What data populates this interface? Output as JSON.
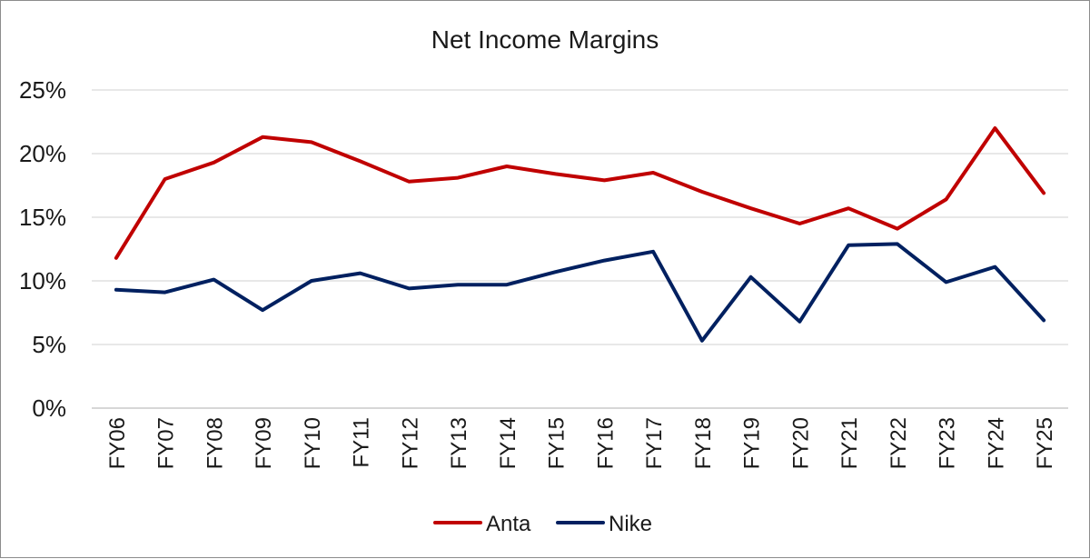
{
  "chart_data": {
    "type": "line",
    "title": "Net Income Margins",
    "xlabel": "",
    "ylabel": "",
    "categories": [
      "FY06",
      "FY07",
      "FY08",
      "FY09",
      "FY10",
      "FY11",
      "FY12",
      "FY13",
      "FY14",
      "FY15",
      "FY16",
      "FY17",
      "FY18",
      "FY19",
      "FY20",
      "FY21",
      "FY22",
      "FY23",
      "FY24",
      "FY25"
    ],
    "series": [
      {
        "name": "Anta",
        "color": "#c00000",
        "values": [
          11.8,
          18.0,
          19.3,
          21.3,
          20.9,
          19.4,
          17.8,
          18.1,
          19.0,
          18.4,
          17.9,
          18.5,
          17.0,
          15.7,
          14.5,
          15.7,
          14.1,
          16.4,
          22.0,
          16.9
        ]
      },
      {
        "name": "Nike",
        "color": "#002060",
        "values": [
          9.3,
          9.1,
          10.1,
          7.7,
          10.0,
          10.6,
          9.4,
          9.7,
          9.7,
          10.7,
          11.6,
          12.3,
          5.3,
          10.3,
          6.8,
          12.8,
          12.9,
          9.9,
          11.1,
          6.9
        ]
      }
    ],
    "ylim": [
      0,
      25
    ],
    "yticks": [
      "0%",
      "5%",
      "10%",
      "15%",
      "20%",
      "25%"
    ],
    "grid": true,
    "legend_position": "bottom-center"
  }
}
